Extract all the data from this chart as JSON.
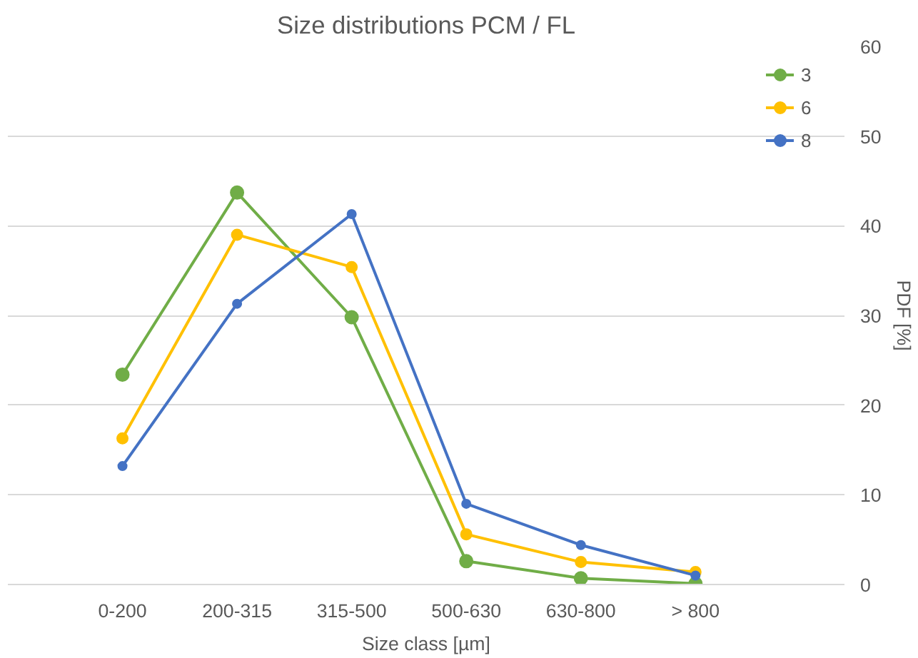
{
  "chart_data": {
    "type": "line",
    "title": "Size distributions PCM / FL",
    "xlabel": "Size class [µm]",
    "ylabel": "PDF [%]",
    "categories": [
      "0-200",
      "200-315",
      "315-500",
      "500-630",
      "630-800",
      "> 800"
    ],
    "series": [
      {
        "name": "3",
        "color": "#70ad47",
        "values": [
          23.4,
          43.7,
          29.8,
          2.6,
          0.7,
          0.1
        ]
      },
      {
        "name": "6",
        "color": "#ffc000",
        "values": [
          16.3,
          39.0,
          35.4,
          5.6,
          2.5,
          1.4
        ]
      },
      {
        "name": "8",
        "color": "#4472c4",
        "values": [
          13.2,
          31.3,
          41.3,
          9.0,
          4.4,
          1.0
        ]
      }
    ],
    "ylim": [
      0,
      60
    ],
    "yticks": [
      0,
      10,
      20,
      30,
      40,
      50,
      60
    ],
    "grid": "y",
    "legend": "top right",
    "marker": "circle",
    "line_style": "solid"
  }
}
